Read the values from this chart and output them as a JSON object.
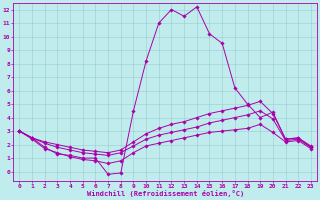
{
  "xlabel": "Windchill (Refroidissement éolien,°C)",
  "xlim": [
    -0.5,
    23.5
  ],
  "ylim": [
    -0.7,
    12.5
  ],
  "xticks": [
    0,
    1,
    2,
    3,
    4,
    5,
    6,
    7,
    8,
    9,
    10,
    11,
    12,
    13,
    14,
    15,
    16,
    17,
    18,
    19,
    20,
    21,
    22,
    23
  ],
  "yticks": [
    0,
    1,
    2,
    3,
    4,
    5,
    6,
    7,
    8,
    9,
    10,
    11,
    12
  ],
  "bg_color": "#c0ecee",
  "line_color": "#aa00aa",
  "grid_color": "#99cccc",
  "lines": [
    [
      3.0,
      2.5,
      1.8,
      1.3,
      1.2,
      1.0,
      1.0,
      -0.2,
      -0.1,
      4.5,
      8.2,
      11.0,
      12.0,
      11.5,
      12.2,
      10.2,
      9.5,
      6.2,
      5.0,
      4.0,
      4.4,
      2.4,
      2.5,
      1.8
    ],
    [
      3.0,
      2.5,
      2.2,
      2.0,
      1.8,
      1.6,
      1.5,
      1.4,
      1.6,
      2.2,
      2.8,
      3.2,
      3.5,
      3.7,
      4.0,
      4.3,
      4.5,
      4.7,
      4.9,
      5.2,
      4.3,
      2.4,
      2.5,
      1.9
    ],
    [
      3.0,
      2.5,
      2.1,
      1.8,
      1.6,
      1.4,
      1.3,
      1.2,
      1.4,
      1.9,
      2.4,
      2.7,
      2.9,
      3.1,
      3.3,
      3.6,
      3.8,
      4.0,
      4.2,
      4.5,
      3.9,
      2.3,
      2.4,
      1.8
    ],
    [
      3.0,
      2.4,
      1.7,
      1.4,
      1.1,
      0.9,
      0.8,
      0.6,
      0.8,
      1.4,
      1.9,
      2.1,
      2.3,
      2.5,
      2.7,
      2.9,
      3.0,
      3.1,
      3.2,
      3.5,
      2.9,
      2.2,
      2.3,
      1.7
    ]
  ]
}
